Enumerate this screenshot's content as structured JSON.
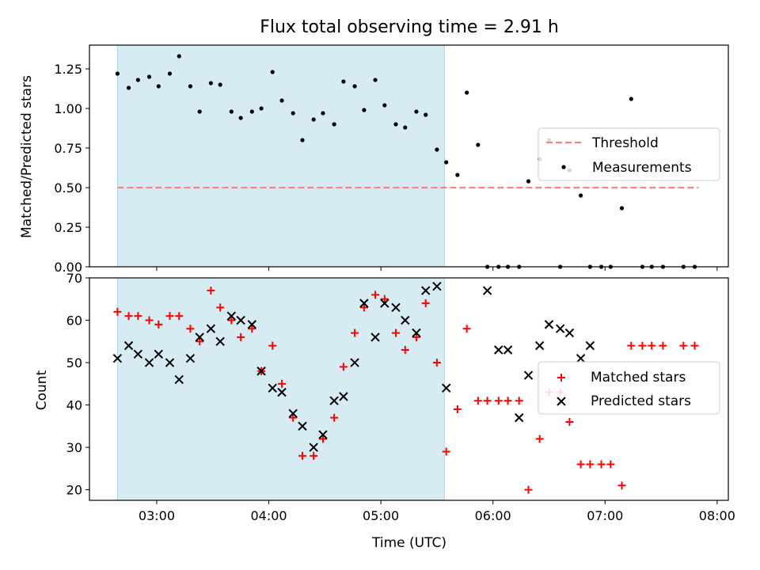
{
  "colors": {
    "shade": "#add8e6",
    "threshold": "#ff7f7f",
    "measurement": "#000000",
    "matched": "#ff0000",
    "predicted": "#000000"
  },
  "chart_data": [
    {
      "type": "scatter",
      "title": "Flux total observing time = 2.91 h",
      "xlabel": "",
      "ylabel": "Matched/Predicted stars",
      "xlim": [
        "02:24",
        "08:06"
      ],
      "ylim": [
        0,
        1.4
      ],
      "yticks": [
        "0.00",
        "0.25",
        "0.50",
        "0.75",
        "1.00",
        "1.25"
      ],
      "shaded_interval": [
        "02:39",
        "05:34"
      ],
      "legend": {
        "position": "center-right",
        "entries": [
          "Threshold",
          "Measurements"
        ]
      },
      "threshold": {
        "name": "Threshold",
        "value": 0.5,
        "x_range": [
          "02:39",
          "07:50"
        ]
      },
      "series": [
        {
          "name": "Measurements",
          "marker": "dot",
          "x": [
            "02:39",
            "02:45",
            "02:50",
            "02:56",
            "03:01",
            "03:07",
            "03:12",
            "03:18",
            "03:23",
            "03:29",
            "03:34",
            "03:40",
            "03:45",
            "03:51",
            "03:56",
            "04:02",
            "04:07",
            "04:13",
            "04:18",
            "04:24",
            "04:29",
            "04:35",
            "04:40",
            "04:46",
            "04:51",
            "04:57",
            "05:02",
            "05:08",
            "05:13",
            "05:19",
            "05:24",
            "05:30",
            "05:35",
            "05:41",
            "05:46",
            "05:52",
            "05:57",
            "06:03",
            "06:08",
            "06:14",
            "06:19",
            "06:25",
            "06:30",
            "06:36",
            "06:41",
            "06:47",
            "06:52",
            "06:58",
            "07:03",
            "07:09",
            "07:14",
            "07:20",
            "07:25",
            "07:31",
            "07:42",
            "07:48"
          ],
          "y": [
            1.22,
            1.13,
            1.18,
            1.2,
            1.14,
            1.22,
            1.33,
            1.14,
            0.98,
            1.16,
            1.15,
            0.98,
            0.94,
            0.98,
            1.0,
            1.23,
            1.05,
            0.97,
            0.8,
            0.93,
            0.97,
            0.9,
            1.17,
            1.14,
            0.99,
            1.18,
            1.02,
            0.9,
            0.88,
            0.98,
            0.96,
            0.74,
            0.66,
            0.58,
            1.1,
            0.77,
            0.0,
            0.0,
            0.0,
            0.0,
            0.54,
            0.68,
            0.8,
            0.0,
            0.61,
            0.45,
            0.0,
            0.0,
            0.0,
            0.37,
            1.06,
            0.0,
            0.0,
            0.0,
            0.0,
            0.0
          ]
        }
      ]
    },
    {
      "type": "scatter",
      "title": "",
      "xlabel": "Time (UTC)",
      "ylabel": "Count",
      "xlim": [
        "02:24",
        "08:06"
      ],
      "ylim": [
        17.5,
        70
      ],
      "xticks": [
        "03:00",
        "04:00",
        "05:00",
        "06:00",
        "07:00",
        "08:00"
      ],
      "yticks": [
        20,
        30,
        40,
        50,
        60,
        70
      ],
      "shaded_interval": [
        "02:39",
        "05:34"
      ],
      "legend": {
        "position": "center-right",
        "entries": [
          "Matched stars",
          "Predicted stars"
        ]
      },
      "series": [
        {
          "name": "Matched stars",
          "marker": "plus",
          "x": [
            "02:39",
            "02:45",
            "02:50",
            "02:56",
            "03:01",
            "03:07",
            "03:12",
            "03:18",
            "03:23",
            "03:29",
            "03:34",
            "03:40",
            "03:45",
            "03:51",
            "03:56",
            "04:02",
            "04:07",
            "04:13",
            "04:18",
            "04:24",
            "04:29",
            "04:35",
            "04:40",
            "04:46",
            "04:51",
            "04:57",
            "05:02",
            "05:08",
            "05:13",
            "05:19",
            "05:24",
            "05:30",
            "05:35",
            "05:41",
            "05:46",
            "05:52",
            "05:57",
            "06:03",
            "06:08",
            "06:14",
            "06:19",
            "06:25",
            "06:30",
            "06:36",
            "06:41",
            "06:47",
            "06:52",
            "06:58",
            "07:03",
            "07:09",
            "07:14",
            "07:20",
            "07:25",
            "07:31",
            "07:42",
            "07:48"
          ],
          "y": [
            62,
            61,
            61,
            60,
            59,
            61,
            61,
            58,
            55,
            67,
            63,
            60,
            56,
            58,
            48,
            54,
            45,
            37,
            28,
            28,
            32,
            37,
            49,
            57,
            63,
            66,
            65,
            57,
            53,
            56,
            64,
            50,
            29,
            39,
            58,
            41,
            41,
            41,
            41,
            41,
            20,
            32,
            43,
            43,
            36,
            26,
            26,
            26,
            26,
            21,
            54,
            54,
            54,
            54,
            54,
            54
          ]
        },
        {
          "name": "Predicted stars",
          "marker": "x",
          "x": [
            "02:39",
            "02:45",
            "02:50",
            "02:56",
            "03:01",
            "03:07",
            "03:12",
            "03:18",
            "03:23",
            "03:29",
            "03:34",
            "03:40",
            "03:45",
            "03:51",
            "03:56",
            "04:02",
            "04:07",
            "04:13",
            "04:18",
            "04:24",
            "04:29",
            "04:35",
            "04:40",
            "04:46",
            "04:51",
            "04:57",
            "05:02",
            "05:08",
            "05:13",
            "05:19",
            "05:24",
            "05:30",
            "05:35",
            "05:57",
            "06:03",
            "06:08",
            "06:14",
            "06:19",
            "06:25",
            "06:30",
            "06:36",
            "06:41",
            "06:47",
            "06:52"
          ],
          "y": [
            51,
            54,
            52,
            50,
            52,
            50,
            46,
            51,
            56,
            58,
            55,
            61,
            60,
            59,
            48,
            44,
            43,
            38,
            35,
            30,
            33,
            41,
            42,
            50,
            64,
            56,
            64,
            63,
            60,
            57,
            67,
            68,
            44,
            67,
            53,
            53,
            37,
            47,
            54,
            59,
            58,
            57,
            51,
            54
          ]
        }
      ]
    }
  ]
}
